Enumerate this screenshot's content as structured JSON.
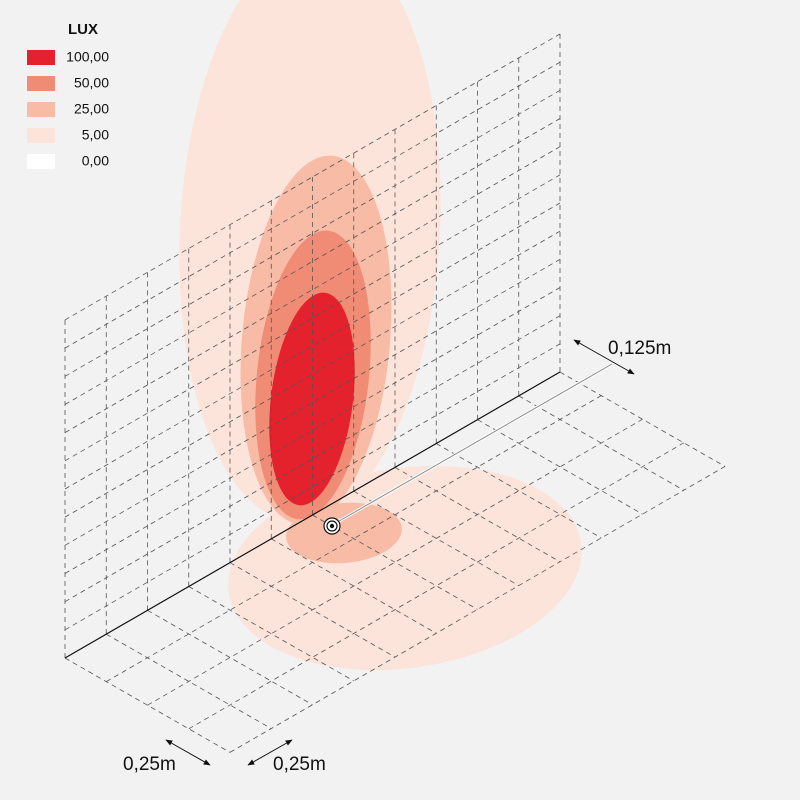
{
  "legend": {
    "title": "LUX",
    "items": [
      {
        "label": "100,00",
        "color": "#e3222d"
      },
      {
        "label": "50,00",
        "color": "#f08b76"
      },
      {
        "label": "25,00",
        "color": "#f7bba6"
      },
      {
        "label": "5,00",
        "color": "#fde4db"
      },
      {
        "label": "0,00",
        "color": "#ffffff"
      }
    ]
  },
  "dimensions": {
    "depth": "0,125m",
    "cell_width": "0,25m",
    "cell_depth": "0,25m"
  }
}
